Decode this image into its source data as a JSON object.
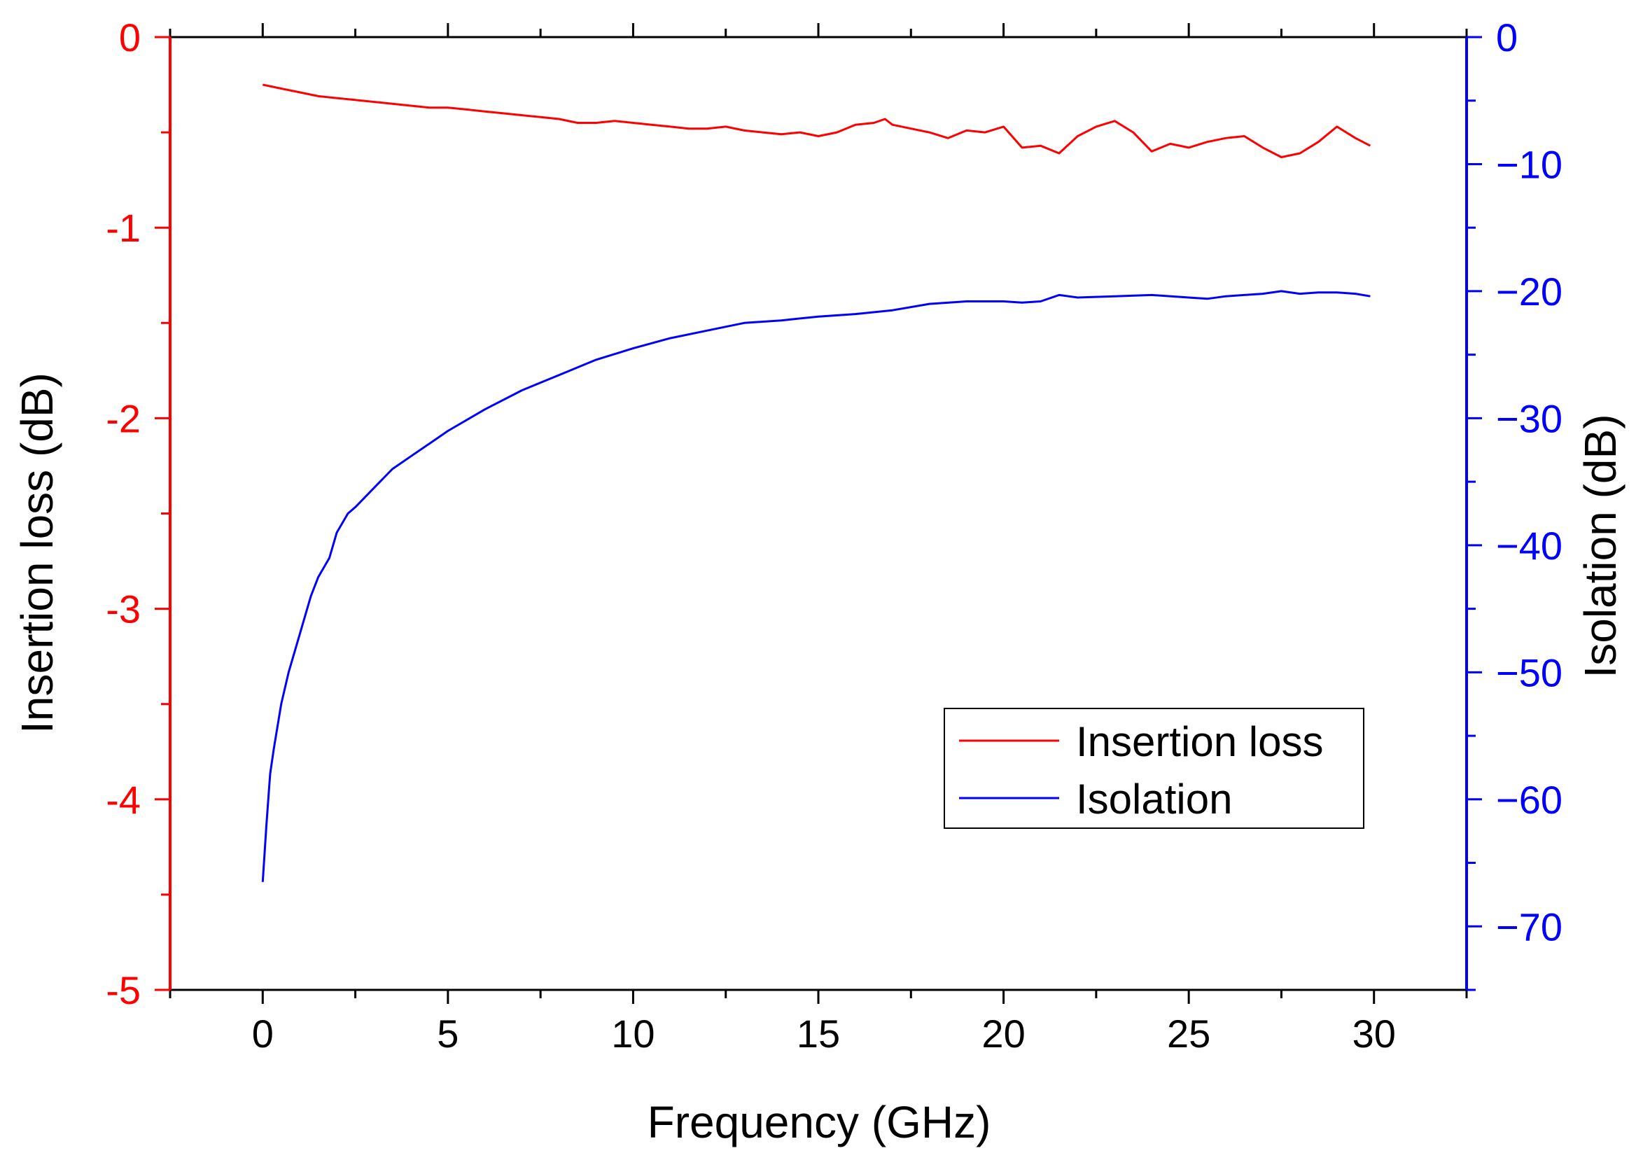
{
  "chart_data": {
    "type": "line",
    "title": "",
    "xlabel": "Frequency (GHz)",
    "ylabel_left": "Insertion loss (dB)",
    "ylabel_right": "Isolation (dB)",
    "xlim": [
      -2.5,
      32.5
    ],
    "ylim_left": [
      -5,
      0
    ],
    "ylim_right": [
      -75,
      0
    ],
    "x_ticks": [
      0,
      5,
      10,
      15,
      20,
      25,
      30
    ],
    "x_tick_labels": [
      "0",
      "5",
      "10",
      "15",
      "20",
      "25",
      "30"
    ],
    "y_left_ticks": [
      0,
      -1,
      -2,
      -3,
      -4,
      -5
    ],
    "y_left_tick_labels": [
      "0",
      "-1",
      "-2",
      "-3",
      "-4",
      "-5"
    ],
    "y_right_ticks": [
      0,
      -10,
      -20,
      -30,
      -40,
      -50,
      -60,
      -70
    ],
    "y_right_tick_labels": [
      "0",
      "−10",
      "−20",
      "−30",
      "−40",
      "−50",
      "−60",
      "−70"
    ],
    "grid": false,
    "legend_position": "lower-right",
    "series": [
      {
        "name": "Insertion loss",
        "axis": "left",
        "color": "#ff0000",
        "x": [
          0.0,
          0.5,
          1.0,
          1.5,
          2.0,
          2.5,
          3.0,
          3.5,
          4.0,
          4.5,
          5.0,
          5.5,
          6.0,
          6.5,
          7.0,
          7.5,
          8.0,
          8.5,
          9.0,
          9.5,
          10.0,
          10.5,
          11.0,
          11.5,
          12.0,
          12.5,
          13.0,
          13.5,
          14.0,
          14.5,
          15.0,
          15.5,
          16.0,
          16.5,
          16.8,
          17.0,
          17.5,
          18.0,
          18.5,
          19.0,
          19.5,
          20.0,
          20.5,
          21.0,
          21.5,
          22.0,
          22.5,
          23.0,
          23.5,
          24.0,
          24.5,
          25.0,
          25.5,
          26.0,
          26.5,
          27.0,
          27.5,
          28.0,
          28.5,
          29.0,
          29.5,
          29.9
        ],
        "values": [
          -0.25,
          -0.27,
          -0.29,
          -0.31,
          -0.32,
          -0.33,
          -0.34,
          -0.35,
          -0.36,
          -0.37,
          -0.37,
          -0.38,
          -0.39,
          -0.4,
          -0.41,
          -0.42,
          -0.43,
          -0.45,
          -0.45,
          -0.44,
          -0.45,
          -0.46,
          -0.47,
          -0.48,
          -0.48,
          -0.47,
          -0.49,
          -0.5,
          -0.51,
          -0.5,
          -0.52,
          -0.5,
          -0.46,
          -0.45,
          -0.43,
          -0.46,
          -0.48,
          -0.5,
          -0.53,
          -0.49,
          -0.5,
          -0.47,
          -0.58,
          -0.57,
          -0.61,
          -0.52,
          -0.47,
          -0.44,
          -0.5,
          -0.6,
          -0.56,
          -0.58,
          -0.55,
          -0.53,
          -0.52,
          -0.58,
          -0.63,
          -0.61,
          -0.55,
          -0.47,
          -0.53,
          -0.57
        ]
      },
      {
        "name": "Isolation",
        "axis": "right",
        "color": "#0000ff",
        "x": [
          0.0,
          0.1,
          0.2,
          0.3,
          0.5,
          0.7,
          1.0,
          1.3,
          1.5,
          1.8,
          2.0,
          2.3,
          2.5,
          3.0,
          3.5,
          4.0,
          4.5,
          5.0,
          6.0,
          7.0,
          8.0,
          9.0,
          10.0,
          11.0,
          12.0,
          13.0,
          14.0,
          15.0,
          16.0,
          17.0,
          18.0,
          19.0,
          20.0,
          20.5,
          21.0,
          21.5,
          22.0,
          23.0,
          24.0,
          25.0,
          25.5,
          26.0,
          27.0,
          27.5,
          28.0,
          28.5,
          29.0,
          29.5,
          29.9
        ],
        "values": [
          -66.5,
          -62.0,
          -58.0,
          -56.0,
          -52.5,
          -50.0,
          -47.0,
          -44.0,
          -42.5,
          -41.0,
          -39.0,
          -37.5,
          -37.0,
          -35.5,
          -34.0,
          -33.0,
          -32.0,
          -31.0,
          -29.3,
          -27.8,
          -26.6,
          -25.4,
          -24.5,
          -23.7,
          -23.1,
          -22.5,
          -22.3,
          -22.0,
          -21.8,
          -21.5,
          -21.0,
          -20.8,
          -20.8,
          -20.9,
          -20.8,
          -20.3,
          -20.5,
          -20.4,
          -20.3,
          -20.5,
          -20.6,
          -20.4,
          -20.2,
          -20.0,
          -20.2,
          -20.1,
          -20.1,
          -20.2,
          -20.4
        ]
      }
    ]
  }
}
